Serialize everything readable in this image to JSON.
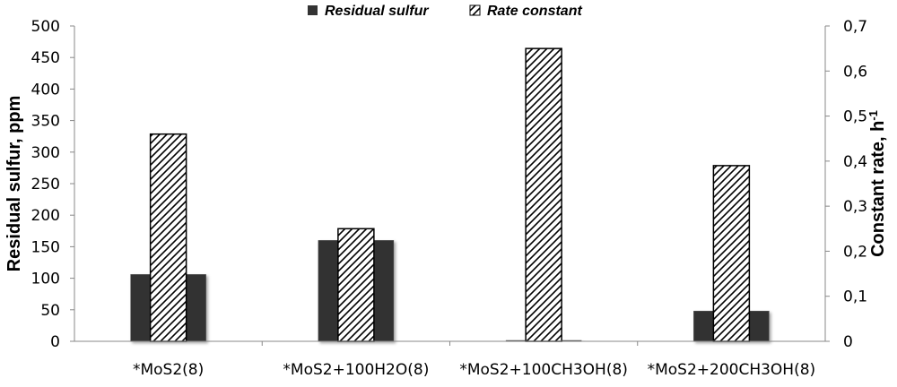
{
  "chart_data": {
    "type": "bar",
    "categories": [
      "*MoS2(8)",
      "*MoS2+100H2O(8)",
      "*MoS2+100CH3OH(8)",
      "*MoS2+200CH3OH(8)"
    ],
    "series": [
      {
        "name": "Residual sulfur",
        "axis": "left",
        "pattern": "solid",
        "color": "#333333",
        "values": [
          106,
          160,
          0,
          48
        ]
      },
      {
        "name": "Rate constant",
        "axis": "right",
        "pattern": "hatched",
        "color": "#ffffff",
        "values": [
          0.46,
          0.25,
          0.65,
          0.39
        ]
      }
    ],
    "ylabel": "Residual sulfur, ppm",
    "ylabel_right": "Constant rate, h",
    "ylabel_right_sup": "-1",
    "ylim": [
      0,
      500
    ],
    "ylim_right": [
      0,
      0.7
    ],
    "yticks": [
      "0",
      "50",
      "100",
      "150",
      "200",
      "250",
      "300",
      "350",
      "400",
      "450",
      "500"
    ],
    "yticks_right": [
      "0",
      "0,1",
      "0,2",
      "0,3",
      "0,4",
      "0,5",
      "0,6",
      "0,7"
    ],
    "grid": false,
    "legend": "top-center"
  }
}
